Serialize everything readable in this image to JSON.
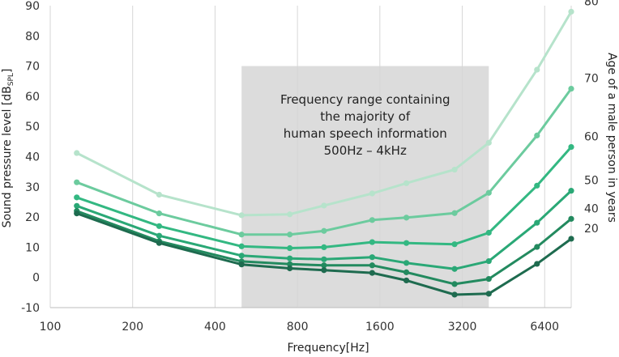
{
  "chart_data": {
    "type": "line",
    "title": "",
    "xlabel": "Frequency[Hz]",
    "ylabel": "Sound pressure level [dB",
    "ylabel_sub": "SPL",
    "ylabel_close": "]",
    "right_label": "Age of a male person in years",
    "xscale": "log2",
    "xlim": [
      100,
      8000
    ],
    "ylim": [
      -10,
      90
    ],
    "xticks": [
      100,
      200,
      400,
      800,
      1600,
      3200,
      6400
    ],
    "xtick_labels": [
      "100",
      "200",
      "400",
      "800",
      "1600",
      "3200",
      "6400"
    ],
    "yticks": [
      -10,
      0,
      10,
      20,
      30,
      40,
      50,
      60,
      70,
      80,
      90
    ],
    "ytick_labels": [
      "-10",
      "0",
      "10",
      "20",
      "30",
      "40",
      "50",
      "60",
      "70",
      "80",
      "90"
    ],
    "grid": "vertical",
    "shaded_region": {
      "x": [
        500,
        4000
      ],
      "y": [
        -10,
        70
      ],
      "color": "#dcdcdc",
      "label_lines": [
        "Frequency range containing",
        "the majority of",
        "human speech information",
        "500Hz – 4kHz"
      ]
    },
    "x": [
      125,
      250,
      500,
      750,
      1000,
      1500,
      2000,
      3000,
      4000,
      6000,
      8000
    ],
    "series": [
      {
        "age": "20",
        "color": "#1e6b4f",
        "values": [
          21.2,
          11.4,
          4.3,
          3.0,
          2.4,
          1.5,
          -1.0,
          -5.7,
          -5.4,
          4.5,
          12.8
        ]
      },
      {
        "age": "40",
        "color": "#238a5f",
        "values": [
          22.0,
          12.0,
          5.3,
          4.4,
          4.0,
          4.0,
          1.7,
          -2.2,
          -0.5,
          10.1,
          19.4
        ]
      },
      {
        "age": "50",
        "color": "#2aa876",
        "values": [
          23.7,
          13.8,
          7.2,
          6.3,
          6.0,
          6.7,
          4.8,
          2.8,
          5.4,
          18.1,
          28.7
        ]
      },
      {
        "age": "60",
        "color": "#33b882",
        "values": [
          26.5,
          17.0,
          10.3,
          9.7,
          10.0,
          11.7,
          11.4,
          11.0,
          14.8,
          30.4,
          43.2
        ]
      },
      {
        "age": "70",
        "color": "#6ccb9e",
        "values": [
          31.5,
          21.2,
          14.2,
          14.2,
          15.4,
          19.0,
          19.8,
          21.3,
          28.0,
          47.0,
          62.5
        ]
      },
      {
        "age": "80",
        "color": "#b6e3cb",
        "values": [
          41.2,
          27.4,
          20.6,
          20.9,
          23.8,
          27.8,
          31.2,
          35.7,
          44.6,
          68.8,
          88.0
        ]
      }
    ]
  }
}
